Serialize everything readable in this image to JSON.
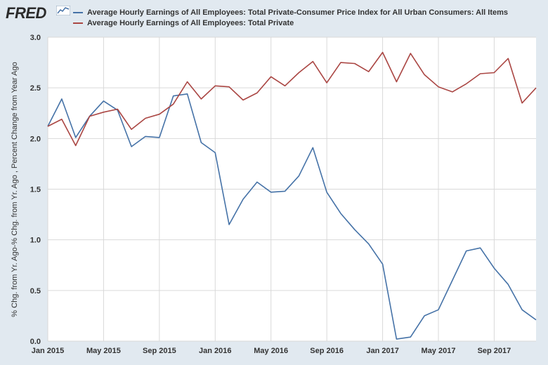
{
  "header": {
    "logo_text": "FRED"
  },
  "colors": {
    "background": "#e1e9f0",
    "plot_background": "#ffffff",
    "grid": "#d9d9d9",
    "series_blue": "#4572a7",
    "series_red": "#aa4643"
  },
  "chart_data": {
    "type": "line",
    "ylabel": "% Chg. from Yr. Ago-% Chg. from Yr. Ago , Percent Change from Year Ago",
    "xlabel": "",
    "ylim": [
      0.0,
      3.0
    ],
    "yticks": [
      "0.0",
      "0.5",
      "1.0",
      "1.5",
      "2.0",
      "2.5",
      "3.0"
    ],
    "xticks": [
      "Jan 2015",
      "May 2015",
      "Sep 2015",
      "Jan 2016",
      "May 2016",
      "Sep 2016",
      "Jan 2017",
      "May 2017",
      "Sep 2017"
    ],
    "x": [
      "2015-01",
      "2015-02",
      "2015-03",
      "2015-04",
      "2015-05",
      "2015-06",
      "2015-07",
      "2015-08",
      "2015-09",
      "2015-10",
      "2015-11",
      "2015-12",
      "2016-01",
      "2016-02",
      "2016-03",
      "2016-04",
      "2016-05",
      "2016-06",
      "2016-07",
      "2016-08",
      "2016-09",
      "2016-10",
      "2016-11",
      "2016-12",
      "2017-01",
      "2017-02",
      "2017-03",
      "2017-04",
      "2017-05",
      "2017-06",
      "2017-07",
      "2017-08",
      "2017-09",
      "2017-10",
      "2017-11",
      "2017-12"
    ],
    "grid": true,
    "legend_position": "top",
    "series": [
      {
        "name": "Average Hourly Earnings of All Employees: Total Private-Consumer Price Index for All Urban Consumers: All Items",
        "color": "#4572a7",
        "values": [
          2.12,
          2.39,
          2.01,
          2.22,
          2.37,
          2.28,
          1.92,
          2.02,
          2.01,
          2.42,
          2.44,
          1.96,
          1.86,
          1.15,
          1.4,
          1.57,
          1.47,
          1.48,
          1.63,
          1.91,
          1.47,
          1.26,
          1.1,
          0.96,
          0.76,
          0.02,
          0.04,
          0.25,
          0.31,
          0.6,
          0.89,
          0.92,
          0.72,
          0.56,
          0.31,
          0.21
        ]
      },
      {
        "name": "Average Hourly Earnings of All Employees: Total Private",
        "color": "#aa4643",
        "values": [
          2.12,
          2.19,
          1.93,
          2.22,
          2.26,
          2.29,
          2.09,
          2.2,
          2.24,
          2.34,
          2.56,
          2.39,
          2.52,
          2.51,
          2.38,
          2.45,
          2.61,
          2.52,
          2.65,
          2.76,
          2.55,
          2.75,
          2.74,
          2.66,
          2.85,
          2.56,
          2.84,
          2.63,
          2.51,
          2.46,
          2.54,
          2.64,
          2.65,
          2.79,
          2.35,
          2.5
        ]
      }
    ]
  }
}
